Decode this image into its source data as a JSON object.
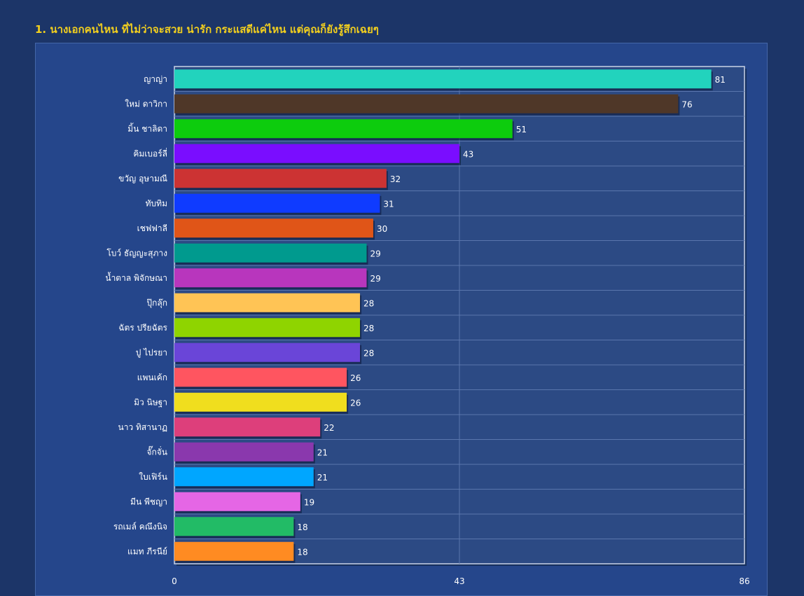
{
  "title": "1. นางเอกคนไหน ที่ไม่ว่าจะสวย น่ารัก กระแสดีแค่ไหน แต่คุณก็ยังรู้สึกเฉยๆ",
  "chart_data": {
    "type": "bar",
    "orientation": "horizontal",
    "title": "1. นางเอกคนไหน ที่ไม่ว่าจะสวย น่ารัก กระแสดีแค่ไหน แต่คุณก็ยังรู้สึกเฉยๆ",
    "categories": [
      "ญาญ่า",
      "ใหม่ ดาวิกา",
      "มิ้น ชาลิดา",
      "คิมเบอร์ลี่",
      "ขวัญ อุษามณี",
      "ทับทิม",
      "เชฟฟาลี",
      "โบว์ ธัญญะสุภาง",
      "น้ำตาล พิจักษณา",
      "ปุ๊กลุ๊ก",
      "ฉัตร ปรียฉัตร",
      "ปู ไปรยา",
      "แพนเค้ก",
      "มิว นิษฐา",
      "นาว ทิสานาฏ",
      "จั๊กจั่น",
      "ใบเฟิร์น",
      "มีน พีชญา",
      "รถเมล์ คณึงนิจ",
      "แมท ภีรนีย์"
    ],
    "values": [
      81,
      76,
      51,
      43,
      32,
      31,
      30,
      29,
      29,
      28,
      28,
      28,
      26,
      26,
      22,
      21,
      21,
      19,
      18,
      18
    ],
    "colors": [
      "#22d3bd",
      "#4f3728",
      "#0dcc0d",
      "#7a0dff",
      "#cc3333",
      "#0f3bff",
      "#e05518",
      "#009a8e",
      "#b836bd",
      "#ffc455",
      "#8fd400",
      "#6a45d8",
      "#ff5560",
      "#f0de1e",
      "#dd3f7b",
      "#8a38ad",
      "#00a6ff",
      "#e566e5",
      "#22bb66",
      "#ff8b22"
    ],
    "xlim": [
      0,
      86
    ],
    "xticks": [
      0,
      43,
      86
    ],
    "grid": true
  },
  "colors": {
    "background": "#1c3568",
    "panel": "#25468b",
    "plot_area": "#2c4a84",
    "grid": "#5a76ad",
    "title": "#f2cf1e"
  }
}
